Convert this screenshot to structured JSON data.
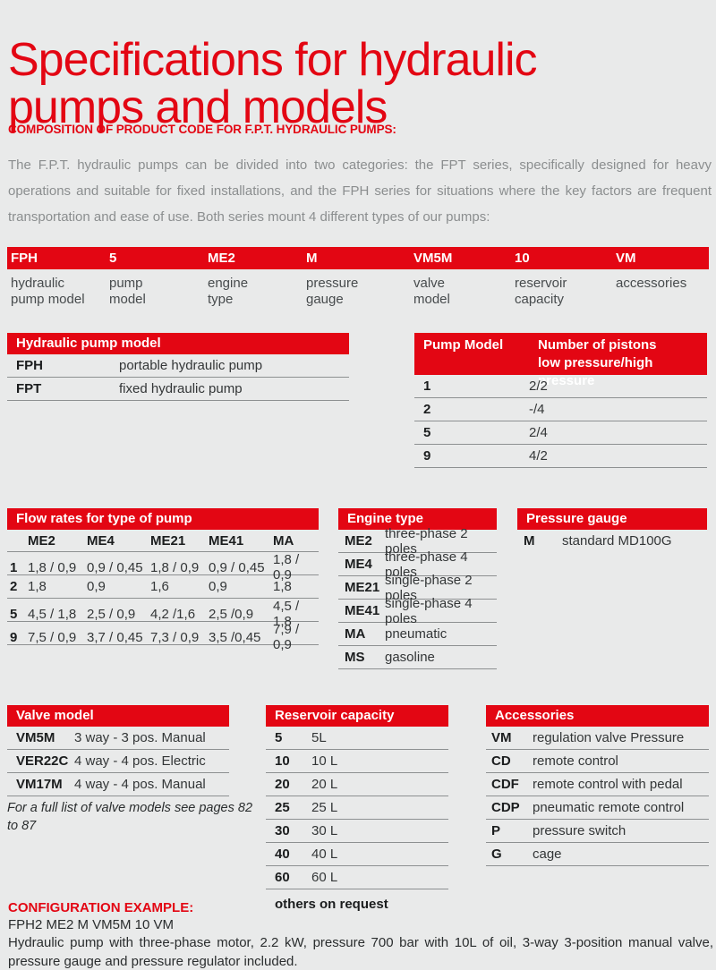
{
  "colors": {
    "accent_red": "#e30613",
    "background": "#e9eaea",
    "text_dark": "#1d1f20",
    "text_gray": "#8b8e8f",
    "line_gray": "#8d9091"
  },
  "page": {
    "title": "Specifications for hydraulic\npumps and models",
    "eyebrow": "COMPOSITION OF PRODUCT CODE FOR F.P.T. HYDRAULIC PUMPS:",
    "intro": "The F.P.T. hydraulic pumps can be divided into two categories: the FPT series, specifically designed for heavy operations and suitable for fixed installations, and the FPH series for situations where the key factors are frequent transportation and ease of use. Both series mount 4 different types of our pumps:"
  },
  "product_code": {
    "parts": [
      {
        "code": "FPH",
        "label": "hydraulic\npump model"
      },
      {
        "code": "5",
        "label": "pump\nmodel"
      },
      {
        "code": "ME2",
        "label": "engine\ntype"
      },
      {
        "code": "M",
        "label": "pressure\ngauge"
      },
      {
        "code": "VM5M",
        "label": "valve\nmodel"
      },
      {
        "code": "10",
        "label": "reservoir\ncapacity"
      },
      {
        "code": "VM",
        "label": "accessories"
      }
    ]
  },
  "tables": {
    "hydraulic_pump_model": {
      "title": "Hydraulic pump model",
      "rows": [
        {
          "code": "FPH",
          "desc": "portable hydraulic pump"
        },
        {
          "code": "FPT",
          "desc": "fixed hydraulic pump"
        }
      ]
    },
    "pump_model": {
      "header_col1": "Pump Model",
      "header_col2": "Number of pistons\nlow pressure/high pressure",
      "rows": [
        {
          "code": "1",
          "desc": "2/2"
        },
        {
          "code": "2",
          "desc": "-/4"
        },
        {
          "code": "5",
          "desc": "2/4"
        },
        {
          "code": "9",
          "desc": "4/2"
        }
      ]
    },
    "flow_rates": {
      "title": "Flow rates for type of pump",
      "columns": [
        "ME2",
        "ME4",
        "ME21",
        "ME41",
        "MA"
      ],
      "rows": [
        {
          "label": "1",
          "values": [
            "1,8 / 0,9",
            "0,9 / 0,45",
            "1,8 / 0,9",
            "0,9 / 0,45",
            "1,8 / 0,9"
          ]
        },
        {
          "label": "2",
          "values": [
            "1,8",
            "0,9",
            "1,6",
            "0,9",
            "1,8"
          ]
        },
        {
          "label": "5",
          "values": [
            "4,5 / 1,8",
            "2,5 / 0,9",
            "4,2 /1,6",
            "2,5 /0,9",
            "4,5 / 1,8"
          ]
        },
        {
          "label": "9",
          "values": [
            "7,5 / 0,9",
            "3,7 / 0,45",
            "7,3 / 0,9",
            "3,5 /0,45",
            "7,9 / 0,9"
          ]
        }
      ]
    },
    "engine_type": {
      "title": "Engine type",
      "rows": [
        {
          "code": "ME2",
          "desc": "three-phase 2 poles"
        },
        {
          "code": "ME4",
          "desc": "three-phase 4 poles"
        },
        {
          "code": "ME21",
          "desc": "single-phase 2 poles"
        },
        {
          "code": "ME41",
          "desc": "single-phase 4 poles"
        },
        {
          "code": "MA",
          "desc": "pneumatic"
        },
        {
          "code": "MS",
          "desc": "gasoline"
        }
      ]
    },
    "pressure_gauge": {
      "title": "Pressure gauge",
      "rows": [
        {
          "code": "M",
          "desc": "standard MD100G"
        }
      ]
    },
    "valve_model": {
      "title": "Valve model",
      "rows": [
        {
          "code": "VM5M",
          "desc": "3 way - 3 pos. Manual"
        },
        {
          "code": "VER22C",
          "desc": "4 way - 4 pos. Electric"
        },
        {
          "code": "VM17M",
          "desc": "4 way - 4 pos. Manual"
        }
      ],
      "note": "For a full list of valve models see pages 82 to 87"
    },
    "reservoir_capacity": {
      "title": "Reservoir capacity",
      "rows": [
        {
          "code": "5",
          "desc": "5L"
        },
        {
          "code": "10",
          "desc": "10 L"
        },
        {
          "code": "20",
          "desc": "20 L"
        },
        {
          "code": "25",
          "desc": "25 L"
        },
        {
          "code": "30",
          "desc": "30 L"
        },
        {
          "code": "40",
          "desc": "40 L"
        },
        {
          "code": "60",
          "desc": "60 L"
        }
      ],
      "footer": "others on request"
    },
    "accessories": {
      "title": "Accessories",
      "rows": [
        {
          "code": "VM",
          "desc": "regulation valve Pressure"
        },
        {
          "code": "CD",
          "desc": "remote control"
        },
        {
          "code": "CDF",
          "desc": "remote control with pedal"
        },
        {
          "code": "CDP",
          "desc": "pneumatic remote control"
        },
        {
          "code": "P",
          "desc": "pressure switch"
        },
        {
          "code": "G",
          "desc": "cage"
        }
      ]
    }
  },
  "configuration_example": {
    "heading": "CONFIGURATION EXAMPLE:",
    "code": "FPH2 ME2 M VM5M 10 VM",
    "description": "Hydraulic pump with three-phase motor, 2.2 kW, pressure 700 bar with 10L of oil, 3-way 3-position manual valve, pressure gauge and pressure regulator included."
  }
}
